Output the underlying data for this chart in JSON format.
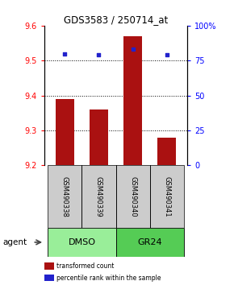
{
  "title": "GDS3583 / 250714_at",
  "samples": [
    "GSM490338",
    "GSM490339",
    "GSM490340",
    "GSM490341"
  ],
  "bar_values": [
    9.39,
    9.36,
    9.57,
    9.28
  ],
  "bar_bottom": 9.2,
  "percentile_values": [
    80,
    79,
    83,
    79
  ],
  "ylim_left": [
    9.2,
    9.6
  ],
  "ylim_right": [
    0,
    100
  ],
  "yticks_left": [
    9.2,
    9.3,
    9.4,
    9.5,
    9.6
  ],
  "yticks_right": [
    0,
    25,
    50,
    75,
    100
  ],
  "ytick_labels_right": [
    "0",
    "25",
    "50",
    "75",
    "100%"
  ],
  "bar_color": "#aa1111",
  "percentile_color": "#2222cc",
  "agent_groups": [
    {
      "label": "DMSO",
      "color": "#99ee99",
      "samples": [
        0,
        1
      ]
    },
    {
      "label": "GR24",
      "color": "#55cc55",
      "samples": [
        2,
        3
      ]
    }
  ],
  "sample_box_color": "#cccccc",
  "legend_items": [
    {
      "color": "#aa1111",
      "label": "transformed count"
    },
    {
      "color": "#2222cc",
      "label": "percentile rank within the sample"
    }
  ],
  "agent_label": "agent"
}
